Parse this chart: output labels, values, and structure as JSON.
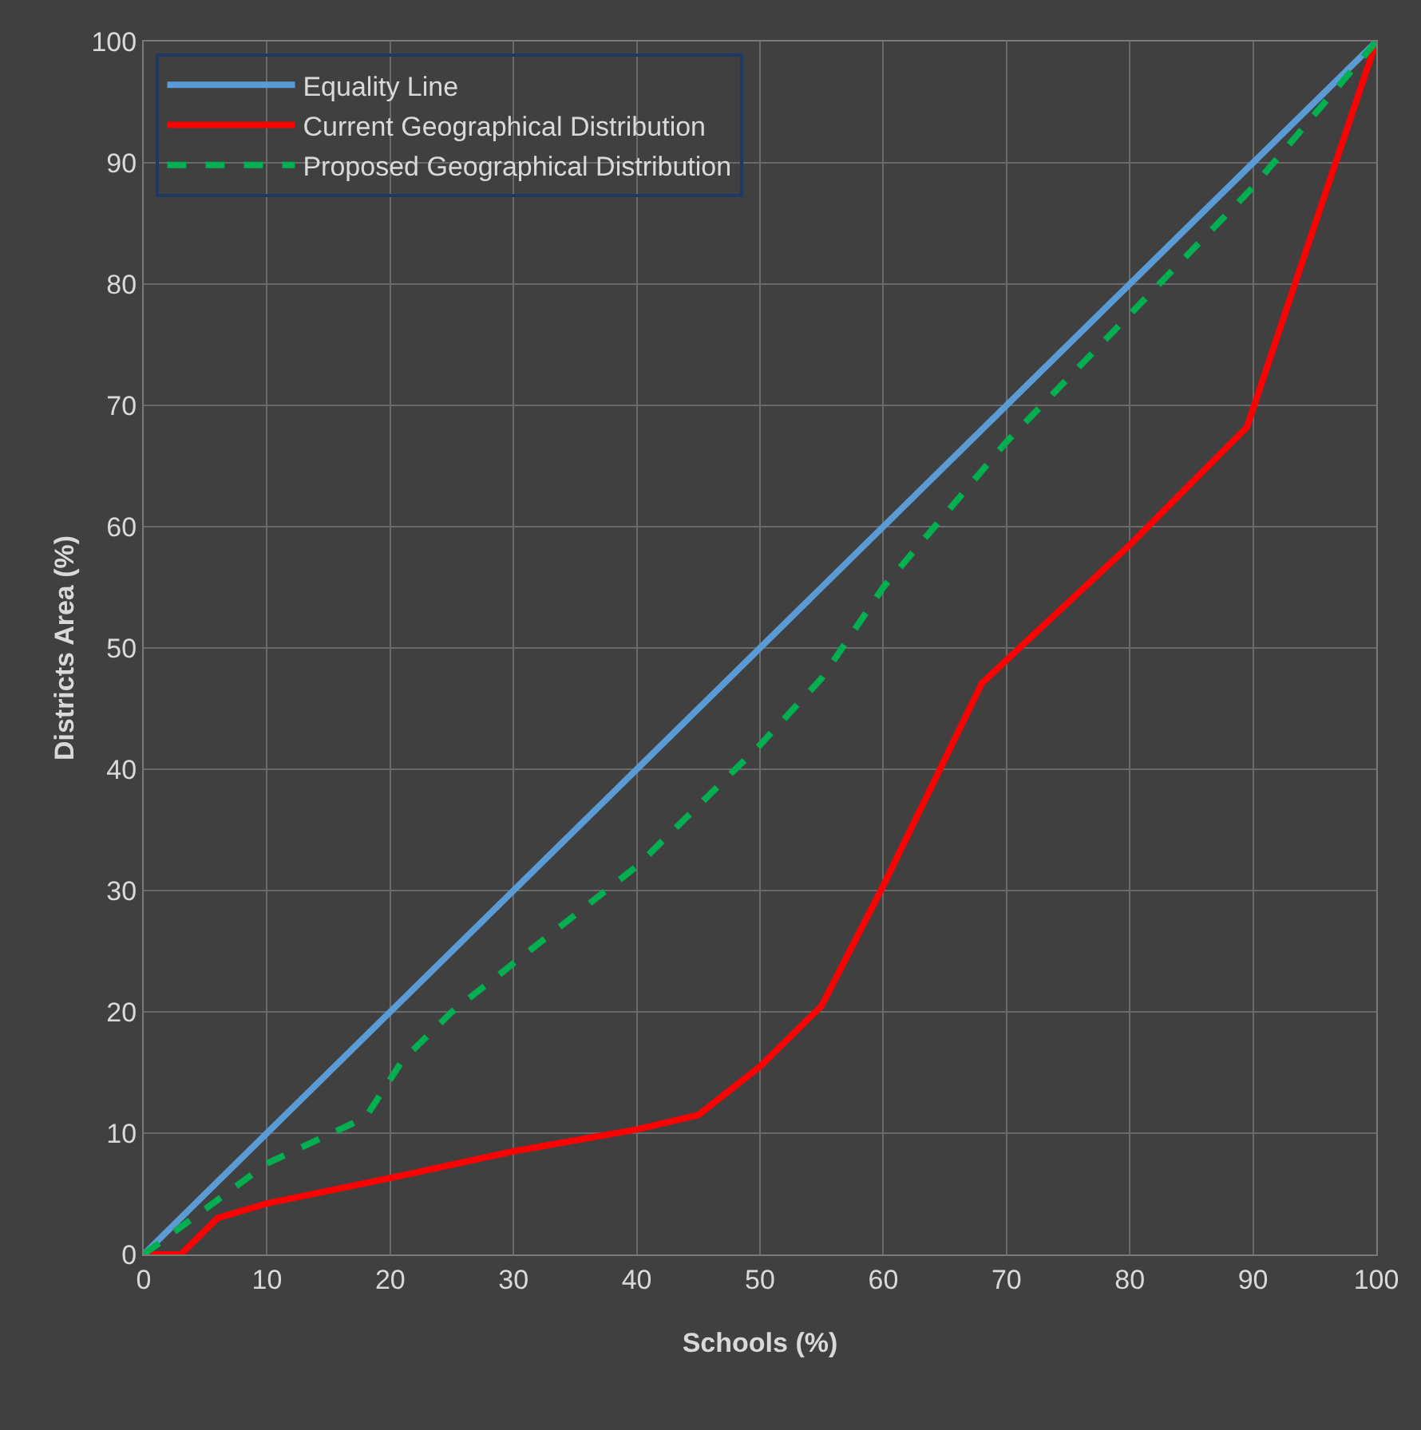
{
  "chart_data": {
    "type": "line",
    "xlabel": "Schools (%)",
    "ylabel": "Districts Area (%)",
    "xlim": [
      0,
      100
    ],
    "xticks": [
      0,
      10,
      20,
      30,
      40,
      50,
      60,
      70,
      80,
      90,
      100
    ],
    "ylim": [
      0,
      100
    ],
    "yticks": [
      0,
      10,
      20,
      30,
      40,
      50,
      60,
      70,
      80,
      90,
      100
    ],
    "grid": true,
    "legend": "top left",
    "marker": "none",
    "series": [
      {
        "name": "Equality Line",
        "color": "#5b9bd5",
        "line_style": "solid",
        "x": [
          0,
          100
        ],
        "values": [
          0,
          100
        ]
      },
      {
        "name": "Current Geographical Distribution",
        "color": "#ff0000",
        "line_style": "solid",
        "x": [
          0,
          3,
          6,
          10,
          20,
          30,
          40,
          45,
          50,
          55,
          60,
          68,
          80,
          89.5,
          100
        ],
        "values": [
          0,
          0,
          3,
          4.2,
          6.3,
          8.5,
          10.3,
          11.5,
          15.5,
          20.5,
          30.4,
          47.1,
          58.5,
          68.2,
          100
        ]
      },
      {
        "name": "Proposed Geographical Distribution",
        "color": "#00b050",
        "line_style": "dashed",
        "x": [
          0,
          10,
          18,
          21,
          25,
          30,
          40,
          45,
          50,
          55,
          60,
          65,
          70,
          80,
          90,
          100
        ],
        "values": [
          0,
          7.5,
          11.3,
          16,
          20,
          24,
          32,
          37,
          42,
          47.5,
          55,
          61,
          67,
          77.5,
          88,
          100
        ]
      }
    ]
  }
}
